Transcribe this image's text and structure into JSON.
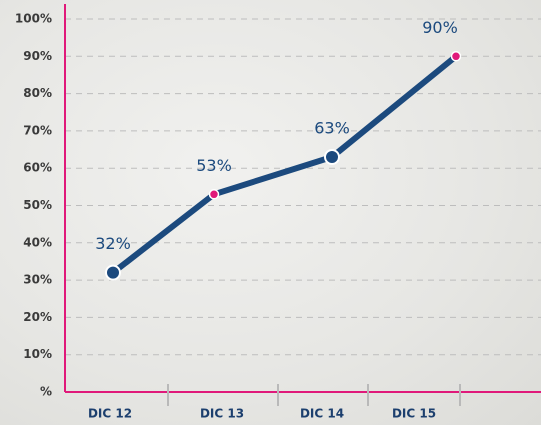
{
  "chart_data": {
    "type": "line",
    "categories": [
      "DIC 12",
      "DIC 13",
      "DIC 14",
      "DIC 15"
    ],
    "values": [
      32,
      53,
      63,
      90
    ],
    "value_labels": [
      "32%",
      "53%",
      "63%",
      "90%"
    ],
    "color": "#1c4a7e",
    "marker_colors": [
      "#1c4a7e",
      "#e0197a",
      "#1c4a7e",
      "#e0197a"
    ],
    "axis_color": "#e0197a",
    "ylim": [
      0,
      100
    ],
    "yticks": [
      {
        "value": 0,
        "label": "%"
      },
      {
        "value": 10,
        "label": "10%"
      },
      {
        "value": 20,
        "label": "20%"
      },
      {
        "value": 30,
        "label": "30%"
      },
      {
        "value": 40,
        "label": "40%"
      },
      {
        "value": 50,
        "label": "50%"
      },
      {
        "value": 60,
        "label": "60%"
      },
      {
        "value": 70,
        "label": "70%"
      },
      {
        "value": 80,
        "label": "80%"
      },
      {
        "value": 90,
        "label": "90%"
      },
      {
        "value": 100,
        "label": "100%"
      }
    ],
    "grid": true
  }
}
